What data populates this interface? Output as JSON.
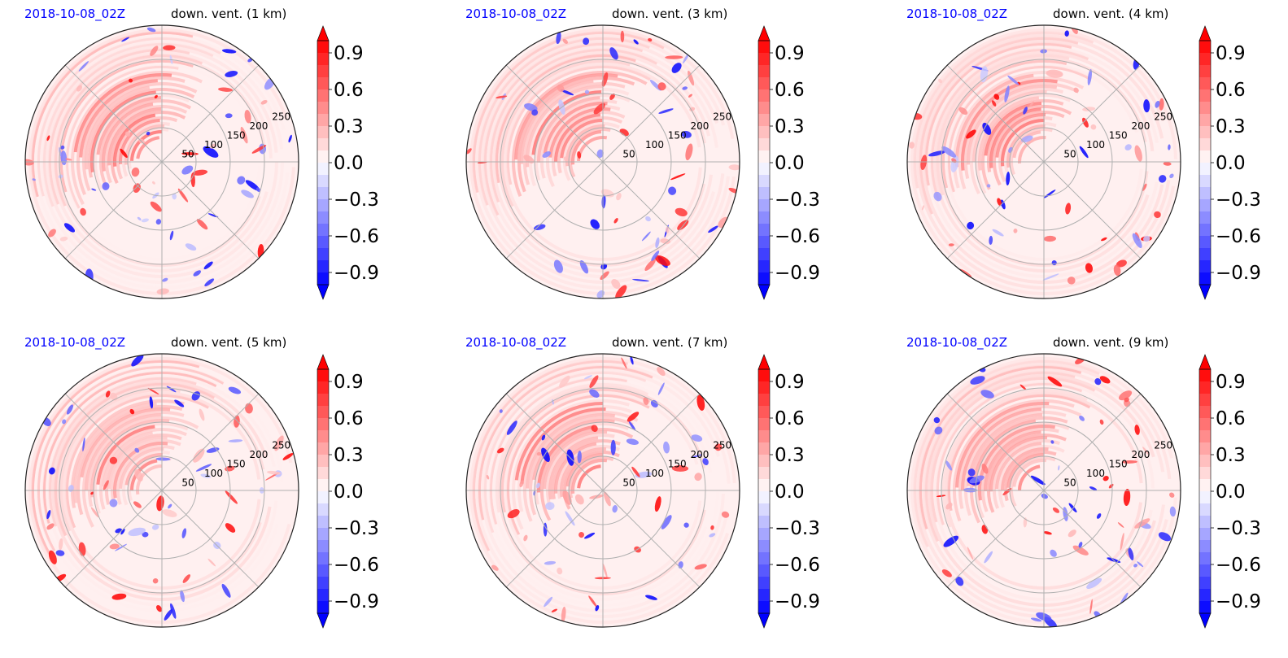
{
  "colors": {
    "positive": "#ff0000",
    "negative": "#0000ff",
    "neutral": "#ffffff",
    "grid": "#b0b0b0",
    "date_text": "#0000ff"
  },
  "chart_data": [
    {
      "type": "heatmap",
      "projection": "polar",
      "date_label": "2018-10-08_02Z",
      "title": "down. vent. (1 km)",
      "radial_ticks": [
        50,
        100,
        150,
        200,
        250
      ],
      "colorbar": {
        "ticks": [
          "0.9",
          "0.6",
          "0.3",
          "0.0",
          "−0.3",
          "−0.6",
          "−0.9"
        ],
        "range": [
          -1.0,
          1.0
        ],
        "extend": "both",
        "cmap": "bwr"
      }
    },
    {
      "type": "heatmap",
      "projection": "polar",
      "date_label": "2018-10-08_02Z",
      "title": "down. vent. (3 km)",
      "radial_ticks": [
        50,
        100,
        150,
        200,
        250
      ],
      "colorbar": {
        "ticks": [
          "0.9",
          "0.6",
          "0.3",
          "0.0",
          "−0.3",
          "−0.6",
          "−0.9"
        ],
        "range": [
          -1.0,
          1.0
        ],
        "extend": "both",
        "cmap": "bwr"
      }
    },
    {
      "type": "heatmap",
      "projection": "polar",
      "date_label": "2018-10-08_02Z",
      "title": "down. vent. (4 km)",
      "radial_ticks": [
        50,
        100,
        150,
        200,
        250
      ],
      "colorbar": {
        "ticks": [
          "0.9",
          "0.6",
          "0.3",
          "0.0",
          "−0.3",
          "−0.6",
          "−0.9"
        ],
        "range": [
          -1.0,
          1.0
        ],
        "extend": "both",
        "cmap": "bwr"
      }
    },
    {
      "type": "heatmap",
      "projection": "polar",
      "date_label": "2018-10-08_02Z",
      "title": "down. vent. (5 km)",
      "radial_ticks": [
        50,
        100,
        150,
        200,
        250
      ],
      "colorbar": {
        "ticks": [
          "0.9",
          "0.6",
          "0.3",
          "0.0",
          "−0.3",
          "−0.6",
          "−0.9"
        ],
        "range": [
          -1.0,
          1.0
        ],
        "extend": "both",
        "cmap": "bwr"
      }
    },
    {
      "type": "heatmap",
      "projection": "polar",
      "date_label": "2018-10-08_02Z",
      "title": "down. vent. (7 km)",
      "radial_ticks": [
        50,
        100,
        150,
        200,
        250
      ],
      "colorbar": {
        "ticks": [
          "0.9",
          "0.6",
          "0.3",
          "0.0",
          "−0.3",
          "−0.6",
          "−0.9"
        ],
        "range": [
          -1.0,
          1.0
        ],
        "extend": "both",
        "cmap": "bwr"
      }
    },
    {
      "type": "heatmap",
      "projection": "polar",
      "date_label": "2018-10-08_02Z",
      "title": "down. vent. (9 km)",
      "radial_ticks": [
        50,
        100,
        150,
        200,
        250
      ],
      "colorbar": {
        "ticks": [
          "0.9",
          "0.6",
          "0.3",
          "0.0",
          "−0.3",
          "−0.6",
          "−0.9"
        ],
        "range": [
          -1.0,
          1.0
        ],
        "extend": "both",
        "cmap": "bwr"
      }
    }
  ]
}
